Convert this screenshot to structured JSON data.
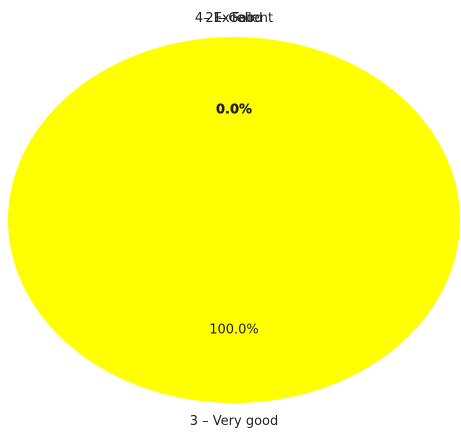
{
  "chart_data": {
    "type": "pie",
    "title": "",
    "slices": [
      {
        "label": "3 – Very good",
        "value": 100.0,
        "pct_text": "100.0%",
        "color": "#ffff00"
      },
      {
        "label": "4– Excellent",
        "value": 0.0,
        "pct_text": "0.0%",
        "color": "#ffff00"
      },
      {
        "label": "2 – Good",
        "value": 0.0,
        "pct_text": "0.0%",
        "color": "#ffff00"
      },
      {
        "label": "1– Fair",
        "value": 0.0,
        "pct_text": "0.0%",
        "color": "#ffff00"
      }
    ],
    "legend": "none"
  }
}
